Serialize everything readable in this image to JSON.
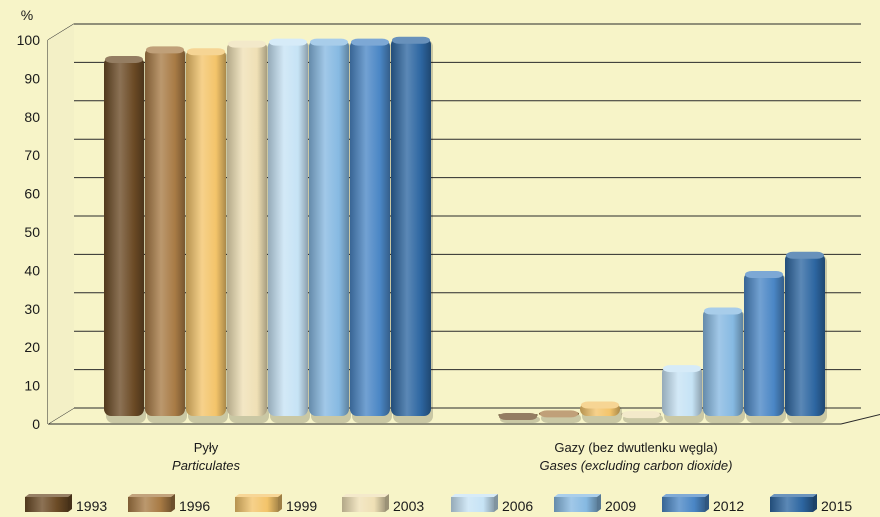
{
  "chart_data": {
    "type": "bar",
    "title": "",
    "ylabel": "%",
    "ylim": [
      0,
      100
    ],
    "yticks": [
      0,
      10,
      20,
      30,
      40,
      50,
      60,
      70,
      80,
      90,
      100
    ],
    "categories": [
      {
        "label": "Pyły",
        "label_en": "Particulates"
      },
      {
        "label": "Gazy (bez dwutlenku węgla)",
        "label_en": "Gases (excluding carbon dioxide)"
      }
    ],
    "series": [
      {
        "name": "1993",
        "color": "#6b4a25",
        "values": [
          93.5,
          0.2
        ]
      },
      {
        "name": "1996",
        "color": "#a87b45",
        "values": [
          96.0,
          1.2
        ]
      },
      {
        "name": "1999",
        "color": "#f3c46a",
        "values": [
          95.5,
          3.5
        ]
      },
      {
        "name": "2003",
        "color": "#efe0b5",
        "values": [
          97.5,
          1.0
        ]
      },
      {
        "name": "2006",
        "color": "#c6e3f5",
        "values": [
          98.0,
          13.0
        ]
      },
      {
        "name": "2009",
        "color": "#86b9e2",
        "values": [
          98.0,
          28.0
        ]
      },
      {
        "name": "2012",
        "color": "#4a86c5",
        "values": [
          98.0,
          37.5
        ]
      },
      {
        "name": "2015",
        "color": "#2d66a1",
        "values": [
          98.5,
          42.5
        ]
      }
    ],
    "grid": true,
    "legend_position": "bottom"
  }
}
